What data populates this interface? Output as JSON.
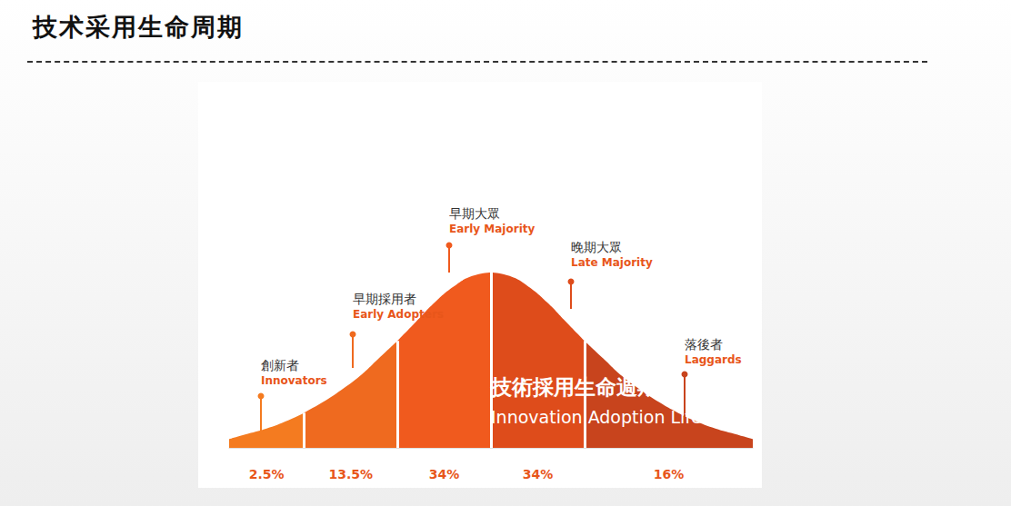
{
  "chart_data": {
    "type": "area",
    "title": "技术采用生命周期",
    "annotations": [
      "技術採用生命週期",
      "Innovation Adoption Lifecycle"
    ],
    "x": [
      -2.8,
      -2.6,
      -2.4,
      -2.2,
      -2.0,
      -1.8,
      -1.6,
      -1.4,
      -1.2,
      -1.0,
      -0.8,
      -0.6,
      -0.4,
      -0.2,
      0,
      0.2,
      0.4,
      0.6,
      0.8,
      1.0,
      1.2,
      1.4,
      1.6,
      1.8,
      2.0,
      2.2,
      2.4,
      2.6,
      2.8
    ],
    "values": [
      0.05,
      0.08,
      0.11,
      0.15,
      0.2,
      0.26,
      0.33,
      0.41,
      0.51,
      0.61,
      0.72,
      0.83,
      0.92,
      0.98,
      1,
      0.98,
      0.92,
      0.83,
      0.72,
      0.61,
      0.51,
      0.41,
      0.33,
      0.26,
      0.2,
      0.15,
      0.11,
      0.08,
      0.05
    ],
    "xlim": [
      -2.8,
      2.8
    ],
    "ylim": [
      0,
      1
    ],
    "tick_labels": false,
    "grid": false,
    "segments": {
      "categories": [
        "創新者",
        "早期採用者",
        "早期大眾",
        "晚期大眾",
        "落後者"
      ],
      "labels_en": [
        "Innovators",
        "Early Adopters",
        "Early Majority",
        "Late Majority",
        "Laggards"
      ],
      "bounds": [
        -2.8,
        -2.0,
        -1.0,
        0,
        1.0,
        2.8
      ],
      "values": [
        2.5,
        13.5,
        34,
        34,
        16
      ],
      "value_labels": [
        "2.5%",
        "13.5%",
        "34%",
        "34%",
        "16%"
      ],
      "colors": [
        "#f47b20",
        "#ef6a1f",
        "#f05a1e",
        "#de4c1b",
        "#c8441d"
      ]
    }
  }
}
